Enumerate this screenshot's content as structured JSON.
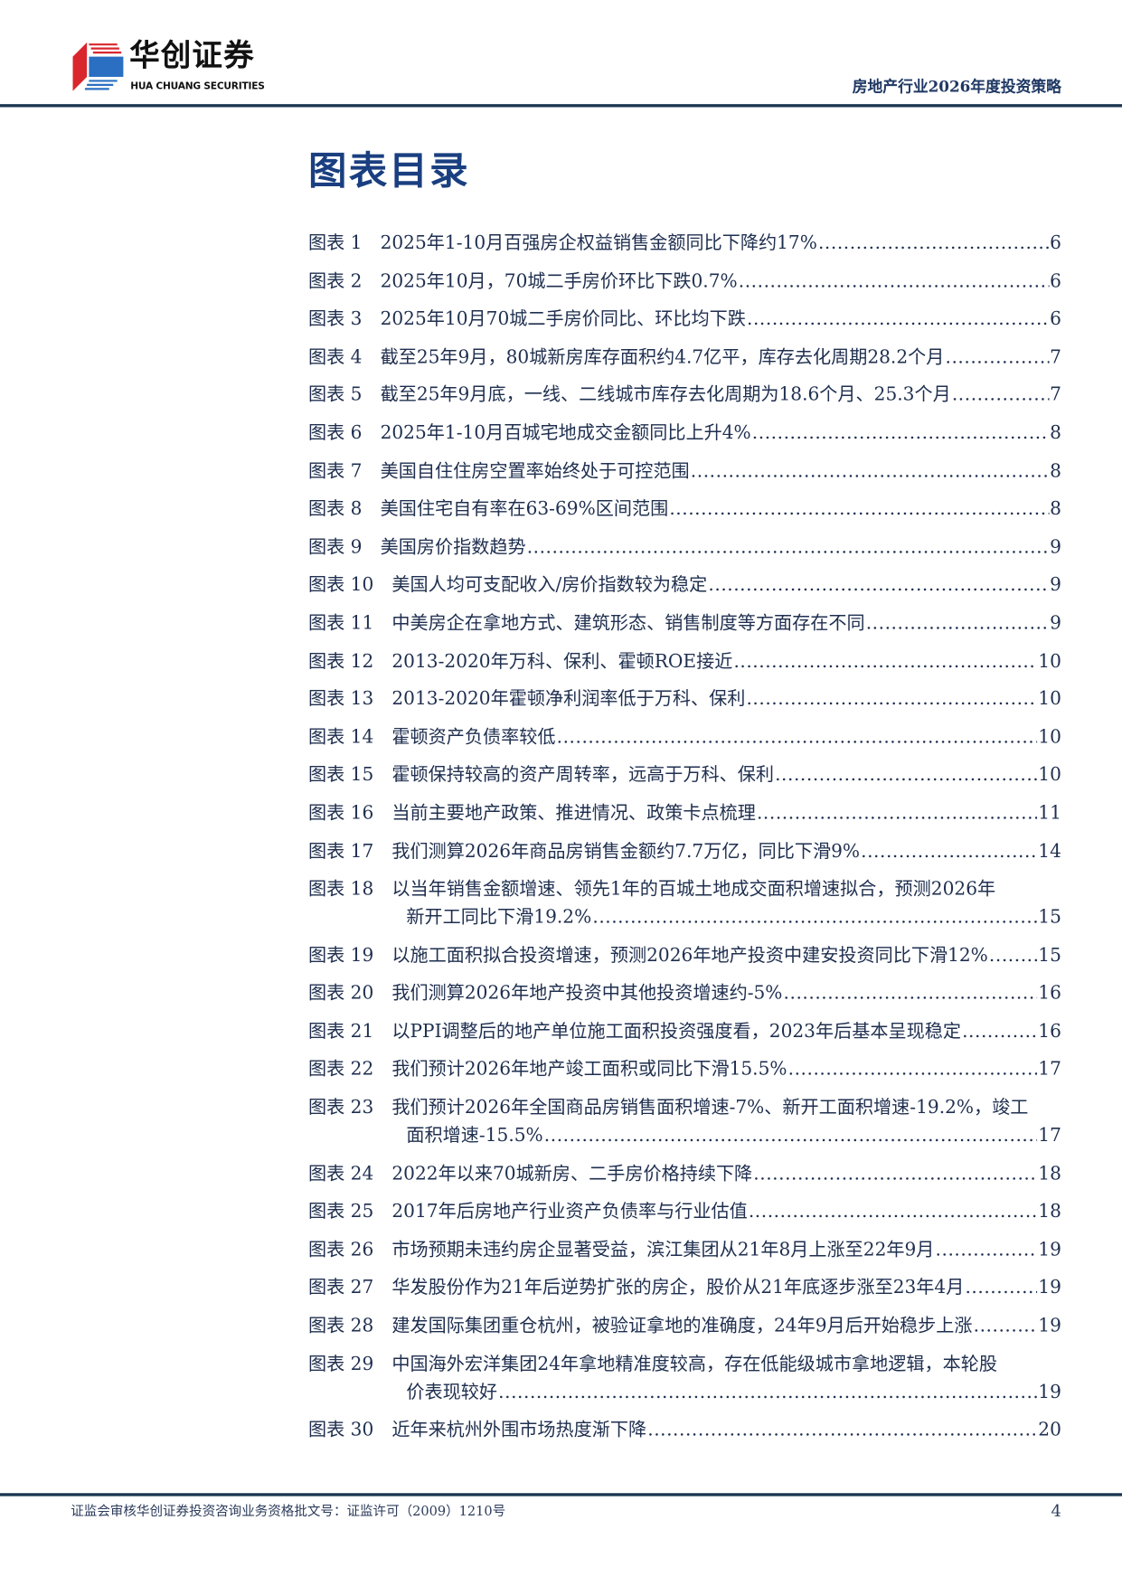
{
  "header": {
    "logo_cn": "华创证券",
    "logo_en": "HUA CHUANG SECURITIES",
    "report_title": "房地产行业2026年度投资策略",
    "colors": {
      "accent": "#1a3f80",
      "rule": "#1b3550",
      "logo_red": "#d9262c",
      "logo_blue": "#2a6fc1"
    }
  },
  "toc": {
    "title": "图表目录",
    "entries": [
      {
        "label": "图表 1",
        "title": "2025年1-10月百强房企权益销售金额同比下降约17%",
        "page": "6"
      },
      {
        "label": "图表 2",
        "title": "2025年10月，70城二手房价环比下跌0.7%",
        "page": "6"
      },
      {
        "label": "图表 3",
        "title": "2025年10月70城二手房价同比、环比均下跌",
        "page": "6"
      },
      {
        "label": "图表 4",
        "title": "截至25年9月，80城新房库存面积约4.7亿平，库存去化周期28.2个月",
        "page": "7"
      },
      {
        "label": "图表 5",
        "title": "截至25年9月底，一线、二线城市库存去化周期为18.6个月、25.3个月",
        "page": "7"
      },
      {
        "label": "图表 6",
        "title": "2025年1-10月百城宅地成交金额同比上升4%",
        "page": "8"
      },
      {
        "label": "图表 7",
        "title": "美国自住住房空置率始终处于可控范围",
        "page": "8"
      },
      {
        "label": "图表 8",
        "title": "美国住宅自有率在63-69%区间范围",
        "page": "8"
      },
      {
        "label": "图表 9",
        "title": "美国房价指数趋势",
        "page": "9"
      },
      {
        "label": "图表 10",
        "title": "美国人均可支配收入/房价指数较为稳定",
        "page": "9"
      },
      {
        "label": "图表 11",
        "title": "中美房企在拿地方式、建筑形态、销售制度等方面存在不同",
        "page": "9"
      },
      {
        "label": "图表 12",
        "title": "2013-2020年万科、保利、霍顿ROE接近",
        "page": "10"
      },
      {
        "label": "图表 13",
        "title": "2013-2020年霍顿净利润率低于万科、保利",
        "page": "10"
      },
      {
        "label": "图表 14",
        "title": "霍顿资产负债率较低",
        "page": "10"
      },
      {
        "label": "图表 15",
        "title": "霍顿保持较高的资产周转率，远高于万科、保利",
        "page": "10"
      },
      {
        "label": "图表 16",
        "title": "当前主要地产政策、推进情况、政策卡点梳理",
        "page": "11"
      },
      {
        "label": "图表 17",
        "title": "我们测算2026年商品房销售金额约7.7万亿，同比下滑9%",
        "page": "14"
      },
      {
        "label": "图表 18",
        "title": "以当年销售金额增速、领先1年的百城土地成交面积增速拟合，预测2026年",
        "title_cont": "新开工同比下滑19.2%",
        "page": "15"
      },
      {
        "label": "图表 19",
        "title": "以施工面积拟合投资增速，预测2026年地产投资中建安投资同比下滑12%",
        "page": "15"
      },
      {
        "label": "图表 20",
        "title": "我们测算2026年地产投资中其他投资增速约-5%",
        "page": "16"
      },
      {
        "label": "图表 21",
        "title": "以PPI调整后的地产单位施工面积投资强度看，2023年后基本呈现稳定",
        "page": "16"
      },
      {
        "label": "图表 22",
        "title": "我们预计2026年地产竣工面积或同比下滑15.5%",
        "page": "17"
      },
      {
        "label": "图表 23",
        "title": "我们预计2026年全国商品房销售面积增速-7%、新开工面积增速-19.2%，竣工",
        "title_cont": "面积增速-15.5%",
        "page": "17"
      },
      {
        "label": "图表 24",
        "title": "2022年以来70城新房、二手房价格持续下降",
        "page": "18"
      },
      {
        "label": "图表 25",
        "title": "2017年后房地产行业资产负债率与行业估值",
        "page": "18"
      },
      {
        "label": "图表 26",
        "title": "市场预期未违约房企显著受益，滨江集团从21年8月上涨至22年9月",
        "page": "19"
      },
      {
        "label": "图表 27",
        "title": "华发股份作为21年后逆势扩张的房企，股价从21年底逐步涨至23年4月",
        "page": "19"
      },
      {
        "label": "图表 28",
        "title": "建发国际集团重仓杭州，被验证拿地的准确度，24年9月后开始稳步上涨",
        "page": "19"
      },
      {
        "label": "图表 29",
        "title": "中国海外宏洋集团24年拿地精准度较高，存在低能级城市拿地逻辑，本轮股",
        "title_cont": "价表现较好",
        "page": "19"
      },
      {
        "label": "图表 30",
        "title": "近年来杭州外围市场热度渐下降",
        "page": "20"
      }
    ]
  },
  "footer": {
    "license": "证监会审核华创证券投资咨询业务资格批文号：证监许可（2009）1210号",
    "page_number": "4"
  }
}
